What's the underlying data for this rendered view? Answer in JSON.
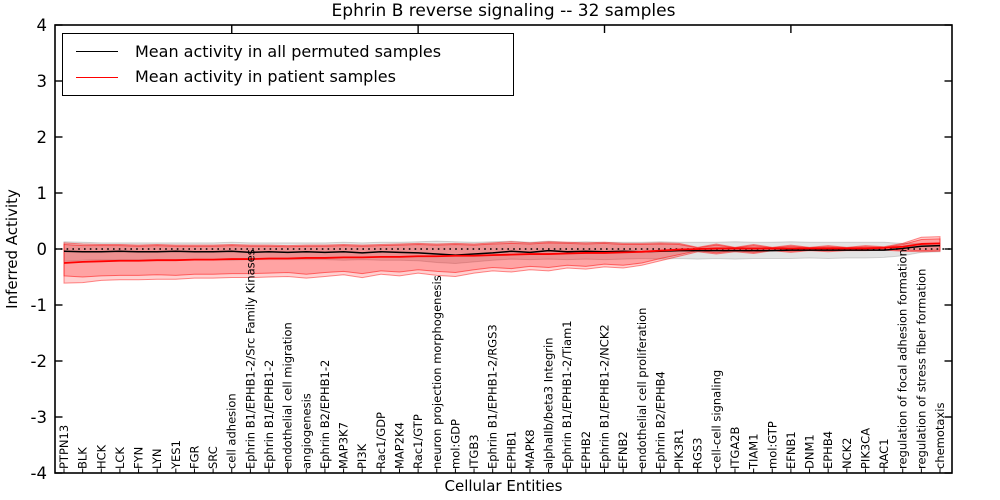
{
  "chart_data": {
    "type": "line",
    "title": "Ephrin B reverse signaling -- 32 samples",
    "xlabel": "Cellular Entities",
    "ylabel": "Inferred Activity",
    "ylim": [
      -4,
      4
    ],
    "ytick_values": [
      4,
      3,
      2,
      1,
      0,
      -1,
      -2,
      -3,
      -4
    ],
    "ytick_labels": [
      "4",
      "3",
      "2",
      "1",
      "0",
      "-1",
      "-2",
      "-3",
      "-4"
    ],
    "xticks_major_indices": [
      9,
      19,
      29,
      39
    ],
    "grid": false,
    "zero_line_style": "dotted",
    "legend_position": "upper left",
    "legend": [
      {
        "label": "Mean activity in all permuted samples",
        "color": "#000000"
      },
      {
        "label": "Mean activity in patient samples",
        "color": "#ff0000"
      }
    ],
    "categories": [
      "PTPN13",
      "BLK",
      "HCK",
      "LCK",
      "FYN",
      "LYN",
      "YES1",
      "FGR",
      "SRC",
      "cell adhesion",
      "Ephrin B1/EPHB1-2/Src Family Kinases",
      "Ephrin B1/EPHB1-2",
      "endothelial cell migration",
      "angiogenesis",
      "Ephrin B2/EPHB1-2",
      "MAP3K7",
      "PI3K",
      "Rac1/GDP",
      "MAP2K4",
      "Rac1/GTP",
      "neuron projection morphogenesis",
      "mol:GDP",
      "ITGB3",
      "Ephrin B1/EPHB1-2/RGS3",
      "EPHB1",
      "MAPK8",
      "alphaIIb/beta3 Integrin",
      "Ephrin B1/EPHB1-2/Tiam1",
      "EPHB2",
      "Ephrin B1/EPHB1-2/NCK2",
      "EFNB2",
      "endothelial cell proliferation",
      "Ephrin B2/EPHB4",
      "PIK3R1",
      "RGS3",
      "cell-cell signaling",
      "ITGA2B",
      "TIAM1",
      "mol:GTP",
      "EFNB1",
      "DNM1",
      "EPHB4",
      "NCK2",
      "PIK3CA",
      "RAC1",
      "regulation of focal adhesion formation",
      "regulation of stress fiber formation",
      "chemotaxis"
    ],
    "series": [
      {
        "name": "Mean activity in all permuted samples",
        "color": "#000000",
        "width": 1.5,
        "values": [
          -0.04,
          -0.05,
          -0.05,
          -0.04,
          -0.05,
          -0.05,
          -0.04,
          -0.05,
          -0.05,
          -0.04,
          -0.06,
          -0.05,
          -0.06,
          -0.05,
          -0.06,
          -0.05,
          -0.07,
          -0.05,
          -0.06,
          -0.07,
          -0.09,
          -0.11,
          -0.09,
          -0.07,
          -0.04,
          -0.06,
          -0.03,
          -0.05,
          -0.04,
          -0.05,
          -0.04,
          -0.05,
          -0.04,
          -0.03,
          -0.03,
          -0.03,
          -0.03,
          -0.03,
          -0.03,
          -0.02,
          -0.02,
          -0.02,
          -0.02,
          -0.02,
          -0.02,
          0.01,
          0.05,
          0.06
        ]
      },
      {
        "name": "Mean activity in patient samples",
        "color": "#ff0000",
        "width": 1.8,
        "values": [
          -0.25,
          -0.23,
          -0.22,
          -0.21,
          -0.21,
          -0.2,
          -0.2,
          -0.19,
          -0.19,
          -0.18,
          -0.18,
          -0.17,
          -0.17,
          -0.16,
          -0.16,
          -0.15,
          -0.15,
          -0.14,
          -0.14,
          -0.13,
          -0.13,
          -0.12,
          -0.12,
          -0.11,
          -0.1,
          -0.09,
          -0.09,
          -0.08,
          -0.07,
          -0.07,
          -0.06,
          -0.05,
          -0.03,
          -0.01,
          0.0,
          0.01,
          0.01,
          0.01,
          0.01,
          0.01,
          0.01,
          0.01,
          0.01,
          0.01,
          0.02,
          0.04,
          0.09,
          0.1
        ]
      }
    ],
    "bands": [
      {
        "name": "permuted-samples-band",
        "fill": "rgba(0,0,0,0.11)",
        "edge": "rgba(0,0,0,0.15)",
        "upper": [
          0.13,
          0.12,
          0.11,
          0.11,
          0.11,
          0.11,
          0.11,
          0.11,
          0.11,
          0.12,
          0.11,
          0.11,
          0.11,
          0.11,
          0.11,
          0.12,
          0.11,
          0.12,
          0.12,
          0.13,
          0.14,
          0.13,
          0.12,
          0.13,
          0.14,
          0.12,
          0.14,
          0.12,
          0.13,
          0.12,
          0.12,
          0.12,
          0.13,
          0.12,
          0.12,
          0.12,
          0.13,
          0.12,
          0.12,
          0.13,
          0.12,
          0.12,
          0.12,
          0.12,
          0.12,
          0.1,
          0.1,
          0.1
        ],
        "lower": [
          -0.22,
          -0.2,
          -0.19,
          -0.19,
          -0.19,
          -0.19,
          -0.19,
          -0.19,
          -0.19,
          -0.2,
          -0.19,
          -0.19,
          -0.19,
          -0.19,
          -0.19,
          -0.2,
          -0.19,
          -0.2,
          -0.2,
          -0.21,
          -0.24,
          -0.26,
          -0.23,
          -0.2,
          -0.18,
          -0.19,
          -0.18,
          -0.19,
          -0.18,
          -0.19,
          -0.18,
          -0.17,
          -0.18,
          -0.17,
          -0.18,
          -0.17,
          -0.18,
          -0.17,
          -0.17,
          -0.17,
          -0.16,
          -0.17,
          -0.16,
          -0.16,
          -0.15,
          -0.12,
          -0.06,
          -0.05
        ]
      },
      {
        "name": "patient-samples-band-outer",
        "fill": "rgba(255,0,0,0.18)",
        "edge": "rgba(255,0,0,0.45)",
        "upper": [
          0.11,
          0.09,
          0.08,
          0.08,
          0.07,
          0.08,
          0.07,
          0.07,
          0.07,
          0.08,
          0.07,
          0.07,
          0.06,
          0.07,
          0.07,
          0.08,
          0.07,
          0.08,
          0.09,
          0.1,
          0.09,
          0.1,
          0.09,
          0.11,
          0.13,
          0.11,
          0.13,
          0.12,
          0.11,
          0.12,
          0.1,
          0.1,
          0.11,
          0.1,
          0.03,
          0.09,
          0.03,
          0.08,
          0.03,
          0.07,
          0.03,
          0.06,
          0.03,
          0.06,
          0.04,
          0.1,
          0.21,
          0.22
        ],
        "lower": [
          -0.61,
          -0.6,
          -0.56,
          -0.55,
          -0.55,
          -0.54,
          -0.54,
          -0.52,
          -0.52,
          -0.51,
          -0.51,
          -0.5,
          -0.49,
          -0.52,
          -0.49,
          -0.46,
          -0.51,
          -0.45,
          -0.48,
          -0.43,
          -0.47,
          -0.49,
          -0.43,
          -0.39,
          -0.41,
          -0.37,
          -0.39,
          -0.34,
          -0.36,
          -0.32,
          -0.34,
          -0.29,
          -0.21,
          -0.13,
          -0.05,
          -0.09,
          -0.05,
          -0.08,
          -0.03,
          -0.06,
          -0.03,
          -0.05,
          -0.03,
          -0.03,
          -0.02,
          -0.04,
          -0.05,
          -0.04
        ]
      },
      {
        "name": "patient-samples-band-inner",
        "fill": "rgba(255,0,0,0.22)",
        "edge": "rgba(255,0,0,0.50)",
        "upper": [
          0.08,
          0.06,
          0.06,
          0.06,
          0.05,
          0.06,
          0.05,
          0.05,
          0.05,
          0.06,
          0.05,
          0.05,
          0.04,
          0.05,
          0.05,
          0.06,
          0.05,
          0.06,
          0.07,
          0.08,
          0.07,
          0.08,
          0.07,
          0.09,
          0.1,
          0.09,
          0.11,
          0.1,
          0.09,
          0.1,
          0.08,
          0.08,
          0.09,
          0.08,
          0.02,
          0.07,
          0.02,
          0.06,
          0.02,
          0.05,
          0.02,
          0.04,
          0.02,
          0.04,
          0.03,
          0.08,
          0.17,
          0.18
        ],
        "lower": [
          -0.48,
          -0.5,
          -0.48,
          -0.47,
          -0.47,
          -0.46,
          -0.47,
          -0.45,
          -0.45,
          -0.44,
          -0.44,
          -0.43,
          -0.42,
          -0.45,
          -0.42,
          -0.4,
          -0.44,
          -0.39,
          -0.41,
          -0.37,
          -0.4,
          -0.42,
          -0.37,
          -0.33,
          -0.35,
          -0.31,
          -0.33,
          -0.29,
          -0.31,
          -0.27,
          -0.29,
          -0.25,
          -0.17,
          -0.1,
          -0.03,
          -0.07,
          -0.03,
          -0.06,
          -0.02,
          -0.04,
          -0.02,
          -0.03,
          -0.02,
          -0.02,
          -0.01,
          -0.02,
          -0.03,
          -0.02
        ]
      }
    ],
    "colors": {
      "axis": "#000000",
      "background": "#ffffff"
    }
  }
}
